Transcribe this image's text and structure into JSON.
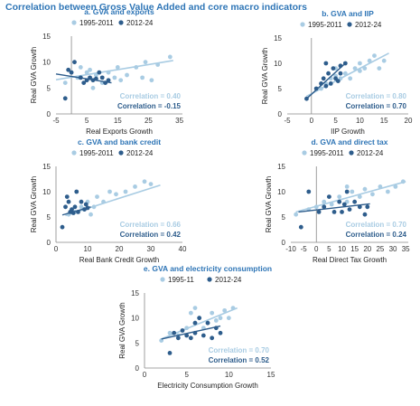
{
  "title": "Correlation between Gross Value Added and core macro indicators",
  "colors": {
    "light": "#a9cce3",
    "dark": "#2e5d8c",
    "title": "#2e75b6",
    "axis": "#888888"
  },
  "chart_data": [
    {
      "type": "scatter",
      "title": "a. GVA and exports",
      "xlabel": "Real Exports Growth",
      "ylabel": "Real GVA Growth",
      "xticks": [
        -5,
        5,
        15,
        25,
        35
      ],
      "yticks": [
        0,
        5,
        10,
        15
      ],
      "xlim": [
        -5,
        36
      ],
      "ylim": [
        0,
        15
      ],
      "series": [
        {
          "name": "1995-2011",
          "correlation_label": "Correlation = 0.40",
          "trend": [
            [
              -5,
              6.6
            ],
            [
              33,
              10.3
            ]
          ],
          "points": [
            [
              -2,
              6
            ],
            [
              2,
              7
            ],
            [
              3,
              9
            ],
            [
              5,
              8
            ],
            [
              6,
              8.5
            ],
            [
              8,
              7.5
            ],
            [
              10,
              6
            ],
            [
              12,
              8
            ],
            [
              14,
              7
            ],
            [
              16,
              6.5
            ],
            [
              18,
              7.5
            ],
            [
              21,
              9
            ],
            [
              23,
              7
            ],
            [
              26,
              6.5
            ],
            [
              28,
              9.5
            ],
            [
              32,
              11
            ],
            [
              24,
              10
            ],
            [
              7,
              5
            ],
            [
              15,
              9
            ]
          ]
        },
        {
          "name": "2012-24",
          "correlation_label": "Correlation = -0.15",
          "trend": [
            [
              -5,
              7.7
            ],
            [
              13,
              6.0
            ]
          ],
          "points": [
            [
              -2,
              3
            ],
            [
              0,
              8
            ],
            [
              1,
              10
            ],
            [
              3,
              7
            ],
            [
              4,
              6
            ],
            [
              5,
              6.5
            ],
            [
              6,
              7
            ],
            [
              7,
              6.5
            ],
            [
              8,
              6.8
            ],
            [
              9,
              8
            ],
            [
              10,
              7
            ],
            [
              11,
              6
            ],
            [
              12,
              6.5
            ],
            [
              -1,
              8.5
            ]
          ]
        }
      ]
    },
    {
      "type": "scatter",
      "title": "b. GVA and IIP",
      "xlabel": "IIP Growth",
      "ylabel": "Real GVA Growth",
      "xticks": [
        -5,
        0,
        5,
        10,
        15,
        20
      ],
      "yticks": [
        0,
        5,
        10,
        15
      ],
      "xlim": [
        -5,
        20
      ],
      "ylim": [
        0,
        15
      ],
      "series": [
        {
          "name": "1995-2011",
          "correlation_label": "Correlation = 0.80",
          "trend": [
            [
              -1,
              3.5
            ],
            [
              16,
              12
            ]
          ],
          "points": [
            [
              2,
              5
            ],
            [
              3,
              6
            ],
            [
              4,
              7
            ],
            [
              5,
              7.5
            ],
            [
              6,
              7
            ],
            [
              7,
              8
            ],
            [
              8,
              7
            ],
            [
              9,
              9
            ],
            [
              10,
              8.5
            ],
            [
              11,
              9
            ],
            [
              12,
              10.5
            ],
            [
              13,
              11.5
            ],
            [
              15,
              10.5
            ],
            [
              14,
              9
            ],
            [
              10,
              10
            ],
            [
              5,
              9
            ]
          ]
        },
        {
          "name": "2012-24",
          "correlation_label": "Correlation = 0.70",
          "trend": [
            [
              -1,
              3.0
            ],
            [
              7,
              10.0
            ]
          ],
          "points": [
            [
              -1,
              3
            ],
            [
              1,
              5
            ],
            [
              2,
              6
            ],
            [
              2.5,
              7
            ],
            [
              3,
              10
            ],
            [
              3.5,
              8
            ],
            [
              4,
              6
            ],
            [
              4.5,
              9
            ],
            [
              5,
              7
            ],
            [
              5.5,
              6.5
            ],
            [
              6,
              9.5
            ],
            [
              6,
              8
            ],
            [
              7,
              10
            ],
            [
              3,
              5.5
            ]
          ]
        }
      ]
    },
    {
      "type": "scatter",
      "title": "c. GVA and bank credit",
      "xlabel": "Real Bank Credit Growth",
      "ylabel": "Real GVA Growth",
      "xticks": [
        0,
        10,
        20,
        30,
        40
      ],
      "yticks": [
        0,
        5,
        10,
        15
      ],
      "xlim": [
        0,
        40
      ],
      "ylim": [
        0,
        15
      ],
      "series": [
        {
          "name": "1995-2011",
          "correlation_label": "Correlation = 0.66",
          "trend": [
            [
              3,
              5.3
            ],
            [
              33,
              11.3
            ]
          ],
          "points": [
            [
              4,
              5.5
            ],
            [
              6,
              6
            ],
            [
              8,
              7
            ],
            [
              9,
              6.5
            ],
            [
              10,
              8
            ],
            [
              12,
              7
            ],
            [
              13,
              9
            ],
            [
              15,
              8
            ],
            [
              17,
              10
            ],
            [
              19,
              9.5
            ],
            [
              22,
              10
            ],
            [
              25,
              11
            ],
            [
              28,
              12
            ],
            [
              30,
              11.5
            ],
            [
              11,
              5.5
            ]
          ]
        },
        {
          "name": "2012-24",
          "correlation_label": "Correlation = 0.42",
          "trend": [
            [
              2,
              5.4
            ],
            [
              11,
              7.0
            ]
          ],
          "points": [
            [
              2,
              3
            ],
            [
              3,
              7
            ],
            [
              3.5,
              9
            ],
            [
              4,
              8
            ],
            [
              4.5,
              6
            ],
            [
              5,
              6.5
            ],
            [
              6,
              7
            ],
            [
              6.5,
              10
            ],
            [
              7,
              6
            ],
            [
              8,
              8
            ],
            [
              9,
              6.5
            ],
            [
              9.5,
              7.5
            ],
            [
              10,
              6.8
            ],
            [
              5.5,
              5.8
            ]
          ]
        }
      ]
    },
    {
      "type": "scatter",
      "title": "d. GVA and direct tax",
      "xlabel": "Real Direct Tax Growth",
      "ylabel": "Real GVA Growth",
      "xticks": [
        -10,
        -5,
        0,
        5,
        10,
        15,
        20,
        25,
        30,
        35
      ],
      "yticks": [
        0,
        5,
        10,
        15
      ],
      "xlim": [
        -10,
        36
      ],
      "ylim": [
        0,
        15
      ],
      "series": [
        {
          "name": "1995-2011",
          "correlation_label": "Correlation = 0.70",
          "trend": [
            [
              -8,
              6.0
            ],
            [
              35,
              12.0
            ]
          ],
          "points": [
            [
              -8,
              5.5
            ],
            [
              -3,
              6.5
            ],
            [
              0,
              7
            ],
            [
              3,
              8
            ],
            [
              6,
              7.5
            ],
            [
              9,
              9
            ],
            [
              12,
              8
            ],
            [
              14,
              10
            ],
            [
              17,
              9
            ],
            [
              19,
              10.5
            ],
            [
              22,
              9.5
            ],
            [
              25,
              11
            ],
            [
              28,
              10
            ],
            [
              31,
              11
            ],
            [
              34,
              12
            ],
            [
              12,
              11
            ]
          ]
        },
        {
          "name": "2012-24",
          "correlation_label": "Correlation = 0.24",
          "trend": [
            [
              -7,
              6.0
            ],
            [
              21,
              7.6
            ]
          ],
          "points": [
            [
              -6,
              3
            ],
            [
              -3,
              10
            ],
            [
              1,
              6
            ],
            [
              3,
              7
            ],
            [
              5,
              9
            ],
            [
              7,
              6
            ],
            [
              9,
              8
            ],
            [
              10,
              6
            ],
            [
              11,
              7.5
            ],
            [
              12,
              10
            ],
            [
              13,
              6.5
            ],
            [
              15,
              8
            ],
            [
              17,
              7
            ],
            [
              19,
              5.5
            ],
            [
              20,
              7
            ]
          ]
        }
      ]
    },
    {
      "type": "scatter",
      "title": "e. GVA and electricity consumption",
      "xlabel": "Electricity Consumption Growth",
      "ylabel": "Real GVA Growth",
      "xticks": [
        0,
        5,
        10,
        15
      ],
      "yticks": [
        0,
        5,
        10,
        15
      ],
      "xlim": [
        0,
        15
      ],
      "ylim": [
        0,
        15
      ],
      "series": [
        {
          "name": "1995-11",
          "correlation_label": "Correlation = 0.70",
          "trend": [
            [
              2,
              5.8
            ],
            [
              11,
              12.0
            ]
          ],
          "points": [
            [
              2,
              5.5
            ],
            [
              3,
              7
            ],
            [
              4,
              6.5
            ],
            [
              5,
              8
            ],
            [
              5.5,
              11
            ],
            [
              6,
              9
            ],
            [
              6.5,
              10
            ],
            [
              7,
              8
            ],
            [
              7.5,
              9
            ],
            [
              8,
              11
            ],
            [
              8.5,
              9.5
            ],
            [
              9,
              10
            ],
            [
              9.5,
              11.5
            ],
            [
              10,
              10
            ],
            [
              10.5,
              12
            ],
            [
              6,
              12
            ]
          ]
        },
        {
          "name": "2012-24",
          "correlation_label": "Correlation = 0.52",
          "trend": [
            [
              2,
              5.8
            ],
            [
              9,
              8.4
            ]
          ],
          "points": [
            [
              3,
              3
            ],
            [
              3.5,
              7
            ],
            [
              4,
              6
            ],
            [
              5,
              6.5
            ],
            [
              5.5,
              6
            ],
            [
              6,
              7
            ],
            [
              6.5,
              10
            ],
            [
              7,
              6.5
            ],
            [
              7.5,
              9
            ],
            [
              8,
              6
            ],
            [
              8.5,
              8
            ],
            [
              9,
              7
            ],
            [
              4.5,
              7.5
            ],
            [
              6,
              9
            ]
          ]
        }
      ]
    }
  ]
}
